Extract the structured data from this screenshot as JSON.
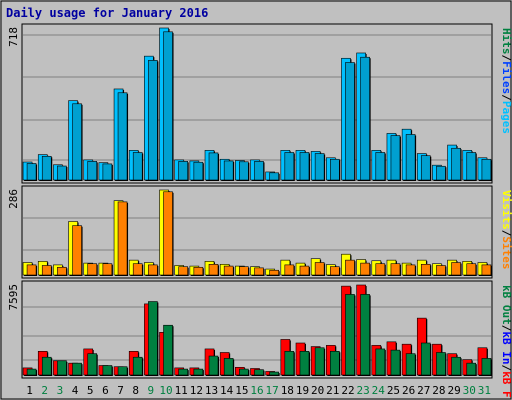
{
  "title": "Daily usage for January 2016",
  "colors": {
    "hits": "#00a0d0",
    "files": "#0040ff",
    "pages": "#00c0ff",
    "visits": "#ffff00",
    "sites": "#ff8000",
    "kbin": "#ff0000",
    "kbout": "#008040",
    "weekend_day": "#008040",
    "weekday_day": "#000000"
  },
  "chart_data": [
    {
      "type": "bar",
      "title": "Daily usage for January 2016",
      "ymax_label": "718",
      "ylim": [
        0,
        718
      ],
      "side_label": [
        {
          "text": "Pages",
          "color": "#00c0ff"
        },
        {
          "text": "/",
          "color": "#000000"
        },
        {
          "text": "Files",
          "color": "#0040ff"
        },
        {
          "text": "/",
          "color": "#000000"
        },
        {
          "text": "Hits",
          "color": "#008040"
        }
      ],
      "categories": [
        "1",
        "2",
        "3",
        "4",
        "5",
        "6",
        "7",
        "8",
        "9",
        "10",
        "11",
        "12",
        "13",
        "14",
        "15",
        "16",
        "17",
        "18",
        "19",
        "20",
        "21",
        "22",
        "23",
        "24",
        "25",
        "26",
        "27",
        "28",
        "29",
        "30",
        "31"
      ],
      "series": [
        {
          "name": "Hits",
          "values": [
            85,
            120,
            72,
            375,
            95,
            82,
            430,
            140,
            585,
            718,
            95,
            90,
            140,
            98,
            92,
            95,
            38,
            140,
            140,
            135,
            105,
            575,
            600,
            140,
            220,
            240,
            125,
            70,
            165,
            140,
            105
          ]
        },
        {
          "name": "Files",
          "values": [
            78,
            112,
            66,
            360,
            88,
            76,
            412,
            130,
            565,
            700,
            88,
            84,
            128,
            90,
            86,
            88,
            34,
            130,
            130,
            125,
            98,
            555,
            580,
            130,
            210,
            215,
            115,
            65,
            150,
            130,
            98
          ]
        }
      ]
    },
    {
      "type": "bar",
      "ymax_label": "286",
      "ylim": [
        0,
        286
      ],
      "side_label": [
        {
          "text": "Sites",
          "color": "#ff8000"
        },
        {
          "text": "/",
          "color": "#000000"
        },
        {
          "text": "Visits",
          "color": "#ffff00"
        }
      ],
      "categories": [
        "1",
        "2",
        "3",
        "4",
        "5",
        "6",
        "7",
        "8",
        "9",
        "10",
        "11",
        "12",
        "13",
        "14",
        "15",
        "16",
        "17",
        "18",
        "19",
        "20",
        "21",
        "22",
        "23",
        "24",
        "25",
        "26",
        "27",
        "28",
        "29",
        "30",
        "31"
      ],
      "series": [
        {
          "name": "Visits",
          "values": [
            42,
            46,
            34,
            180,
            40,
            40,
            250,
            50,
            42,
            286,
            32,
            30,
            46,
            36,
            30,
            28,
            20,
            50,
            40,
            55,
            35,
            70,
            52,
            48,
            50,
            40,
            50,
            38,
            50,
            46,
            42
          ]
        },
        {
          "name": "Sites",
          "values": [
            34,
            32,
            26,
            166,
            38,
            38,
            246,
            38,
            34,
            280,
            28,
            26,
            36,
            30,
            28,
            24,
            16,
            34,
            30,
            42,
            28,
            50,
            40,
            38,
            38,
            34,
            36,
            32,
            42,
            38,
            34
          ]
        }
      ]
    },
    {
      "type": "bar",
      "ymax_label": "7595",
      "ylim": [
        0,
        7595
      ],
      "side_label": [
        {
          "text": "kB F",
          "color": "#ff0000"
        },
        {
          "text": "/",
          "color": "#000000"
        },
        {
          "text": "kB In",
          "color": "#0000ff"
        },
        {
          "text": "/",
          "color": "#000000"
        },
        {
          "text": "kB Out",
          "color": "#008040"
        }
      ],
      "categories": [
        "1",
        "2",
        "3",
        "4",
        "5",
        "6",
        "7",
        "8",
        "9",
        "10",
        "11",
        "12",
        "13",
        "14",
        "15",
        "16",
        "17",
        "18",
        "19",
        "20",
        "21",
        "22",
        "23",
        "24",
        "25",
        "26",
        "27",
        "28",
        "29",
        "30",
        "31"
      ],
      "series": [
        {
          "name": "kB In",
          "values": [
            600,
            2000,
            1200,
            1000,
            2200,
            800,
            700,
            2000,
            6000,
            3600,
            600,
            600,
            2200,
            1900,
            650,
            550,
            300,
            3000,
            2700,
            2400,
            2500,
            7500,
            7595,
            2500,
            2800,
            2600,
            4800,
            2600,
            1800,
            1300,
            2300
          ]
        },
        {
          "name": "kB Out",
          "values": [
            500,
            1500,
            1200,
            1000,
            1800,
            800,
            700,
            1500,
            6200,
            4200,
            500,
            500,
            1600,
            1400,
            500,
            450,
            250,
            2000,
            2000,
            2300,
            2000,
            6800,
            6800,
            2200,
            2100,
            1800,
            2700,
            1900,
            1500,
            1000,
            1400
          ]
        }
      ]
    }
  ]
}
